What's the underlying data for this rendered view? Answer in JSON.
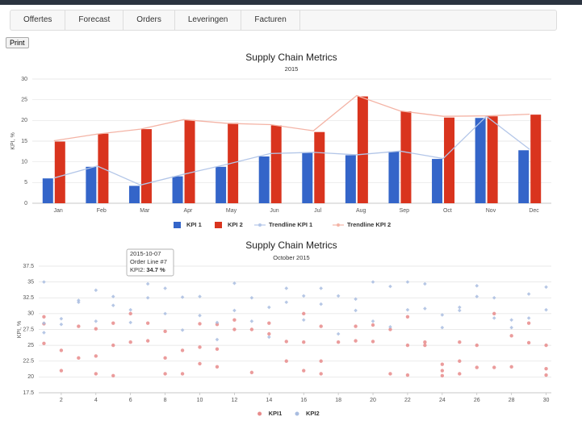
{
  "nav": {
    "tabs": [
      "Offertes",
      "Forecast",
      "Orders",
      "Leveringen",
      "Facturen"
    ]
  },
  "print_button": "Print",
  "chart_data": [
    {
      "type": "bar",
      "title": "Supply Chain Metrics",
      "subtitle": "2015",
      "y_label": "KPI, %",
      "categories": [
        "Jan",
        "Feb",
        "Mar",
        "Apr",
        "May",
        "Jun",
        "Jul",
        "Aug",
        "Sep",
        "Oct",
        "Nov",
        "Dec"
      ],
      "series": [
        {
          "name": "KPI 1",
          "color": "#3465c9",
          "kind": "bar",
          "values": [
            6,
            8.8,
            4.2,
            6.5,
            8.8,
            11.3,
            12.3,
            11.6,
            12.5,
            10.7,
            20.6,
            12.8
          ]
        },
        {
          "name": "KPI 2",
          "color": "#d9341e",
          "kind": "bar",
          "values": [
            14.9,
            16.8,
            17.9,
            20.1,
            19.4,
            18.8,
            17.2,
            25.8,
            22.2,
            20.7,
            21,
            21.4
          ]
        },
        {
          "name": "Trendline KPI 1",
          "color": "#b3c6e8",
          "kind": "line",
          "values": [
            6.1,
            9,
            4.4,
            7,
            9.4,
            12,
            12.3,
            11.7,
            12.6,
            10.8,
            21,
            13
          ]
        },
        {
          "name": "Trendline KPI 2",
          "color": "#f4b4a6",
          "kind": "line",
          "values": [
            15.1,
            16.7,
            17.9,
            20.2,
            19.3,
            19,
            17.5,
            26,
            22.3,
            21,
            21.1,
            21.5
          ]
        }
      ],
      "ylim": [
        0,
        30
      ],
      "yticks": [
        0,
        5,
        10,
        15,
        20,
        25,
        30
      ],
      "grid": true
    },
    {
      "type": "scatter",
      "title": "Supply Chain Metrics",
      "subtitle": "October 2015",
      "y_label": "KPI, %",
      "xlim": [
        0.7,
        30.3
      ],
      "xticks": [
        2,
        4,
        6,
        8,
        10,
        12,
        14,
        16,
        18,
        20,
        22,
        24,
        26,
        28,
        30
      ],
      "ylim": [
        17.5,
        37.5
      ],
      "yticks": [
        17.5,
        20,
        22.5,
        25,
        27.5,
        30,
        32.5,
        35,
        37.5
      ],
      "grid": true,
      "series": [
        {
          "name": "KPI1",
          "color": "#e88b8b",
          "x": [
            1,
            1,
            1,
            2,
            2,
            3,
            3,
            4,
            4,
            4,
            5,
            5,
            5,
            6,
            6,
            7,
            7,
            8,
            8,
            8,
            9,
            9,
            10,
            10,
            10,
            11,
            11,
            11,
            12,
            12,
            13,
            13,
            14,
            14,
            15,
            15,
            16,
            16,
            16,
            17,
            17,
            17,
            18,
            19,
            19,
            20,
            20,
            21,
            21,
            22,
            22,
            22,
            23,
            23,
            24,
            24,
            24,
            25,
            25,
            25,
            26,
            26,
            27,
            27,
            28,
            28,
            29,
            29,
            30,
            30,
            30
          ],
          "values": [
            29.5,
            25.3,
            28.4,
            24.2,
            21,
            28,
            23,
            27.6,
            23.3,
            20.5,
            28.5,
            25,
            20.2,
            30,
            25.5,
            28.5,
            25.7,
            27.2,
            23,
            20.5,
            24.2,
            20.5,
            28.4,
            24.7,
            22.1,
            28.3,
            24.4,
            21.6,
            29,
            27.5,
            27.5,
            20.7,
            28.5,
            26.8,
            25.6,
            22.5,
            30,
            25.5,
            21,
            28,
            22.5,
            20.5,
            25.5,
            28,
            25.7,
            28.2,
            25.6,
            27.5,
            20.5,
            29.5,
            25,
            20.3,
            25.5,
            25,
            22,
            21,
            20.2,
            25.5,
            22.5,
            20.5,
            25,
            21.5,
            30,
            21.5,
            26.5,
            21.6,
            28.5,
            25.4,
            25,
            21.3,
            20.3
          ]
        },
        {
          "name": "KPI2",
          "color": "#a9bde0",
          "x": [
            1,
            1,
            1,
            2,
            2,
            3,
            3,
            4,
            4,
            5,
            5,
            6,
            6,
            7,
            7,
            8,
            8,
            9,
            9,
            10,
            10,
            11,
            11,
            12,
            12,
            13,
            13,
            14,
            14,
            15,
            15,
            16,
            16,
            17,
            17,
            18,
            18,
            19,
            19,
            20,
            20,
            21,
            21,
            22,
            22,
            23,
            23,
            24,
            24,
            25,
            25,
            26,
            26,
            27,
            27,
            28,
            28,
            29,
            29,
            30,
            30
          ],
          "values": [
            35,
            28.5,
            27,
            29.2,
            28.3,
            32.1,
            31.8,
            33.7,
            28.8,
            32.7,
            31.3,
            30.6,
            28.6,
            34.7,
            32.5,
            34,
            30,
            32.6,
            27.4,
            32.7,
            29.7,
            28.6,
            25.9,
            34.8,
            30.5,
            32.5,
            28.8,
            31,
            26.3,
            34,
            31.8,
            32.8,
            29,
            34,
            31.5,
            32.8,
            26.8,
            32.3,
            30.5,
            35,
            28.8,
            34.3,
            27.9,
            35,
            30.6,
            34.7,
            30.8,
            29.8,
            27.8,
            31,
            30.5,
            34.4,
            32.7,
            32.5,
            29.3,
            29,
            27.8,
            33.1,
            29.3,
            34.2,
            30.6
          ]
        }
      ],
      "tooltip": {
        "date": "2015-10-07",
        "line": "Order Line #7",
        "label": "KPI2:",
        "value_text": "34.7 %"
      }
    }
  ]
}
